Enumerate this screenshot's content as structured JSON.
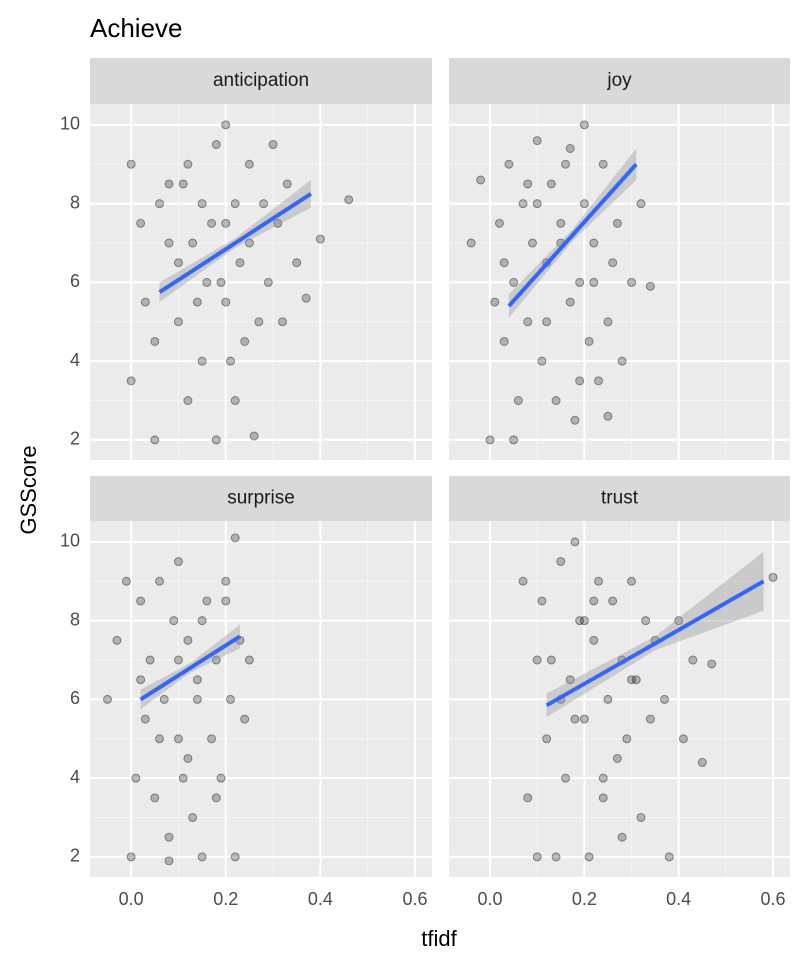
{
  "chart_data": {
    "type": "scatter",
    "title": "Achieve",
    "xlabel": "tfidf",
    "ylabel": "GSScore",
    "xlim": [
      -0.087,
      0.636
    ],
    "ylim": [
      1.49,
      10.53
    ],
    "xticks": [
      {
        "value": 0,
        "label": "0.0"
      },
      0.2,
      0.4,
      0.6
    ],
    "yticks": [
      2,
      4,
      6,
      8,
      10
    ],
    "grid": true,
    "point_color": "#000000",
    "fit_color": "#3366ff",
    "band_color": "#999999",
    "facets": [
      {
        "name": "anticipation",
        "x": [
          0.0,
          0.02,
          0.03,
          0.05,
          0.0,
          0.05,
          0.08,
          0.1,
          0.1,
          0.12,
          0.12,
          0.13,
          0.15,
          0.15,
          0.16,
          0.18,
          0.18,
          0.2,
          0.2,
          0.2,
          0.22,
          0.22,
          0.23,
          0.24,
          0.25,
          0.25,
          0.26,
          0.27,
          0.28,
          0.29,
          0.3,
          0.31,
          0.32,
          0.33,
          0.35,
          0.37,
          0.4,
          0.46,
          0.08,
          0.14,
          0.06,
          0.11,
          0.19,
          0.21,
          0.17
        ],
        "y": [
          9.0,
          7.5,
          5.5,
          4.5,
          3.5,
          2.0,
          8.5,
          6.5,
          5.0,
          3.0,
          9.0,
          7.0,
          8.0,
          4.0,
          6.0,
          9.5,
          2.0,
          7.5,
          5.5,
          10.0,
          8.0,
          3.0,
          6.5,
          4.5,
          9.0,
          7.0,
          2.1,
          5.0,
          8.0,
          6.0,
          9.5,
          7.5,
          5.0,
          8.5,
          6.5,
          5.6,
          7.1,
          8.1,
          7.0,
          5.5,
          8.0,
          8.5,
          6.0,
          4.0,
          7.5
        ],
        "fit": {
          "x": [
            0.06,
            0.22,
            0.38
          ],
          "y": [
            5.75,
            7.0,
            8.25
          ],
          "lower": [
            5.5,
            6.88,
            7.9
          ],
          "upper": [
            6.0,
            7.12,
            8.6
          ]
        }
      },
      {
        "name": "joy",
        "x": [
          -0.04,
          -0.02,
          0.0,
          0.01,
          0.02,
          0.03,
          0.04,
          0.05,
          0.06,
          0.07,
          0.08,
          0.09,
          0.1,
          0.11,
          0.12,
          0.13,
          0.14,
          0.15,
          0.16,
          0.17,
          0.18,
          0.19,
          0.2,
          0.2,
          0.21,
          0.22,
          0.23,
          0.24,
          0.25,
          0.26,
          0.27,
          0.28,
          0.3,
          0.32,
          0.34,
          0.19,
          0.05,
          0.15,
          0.1,
          0.22,
          0.12,
          0.08,
          0.17,
          0.25,
          0.03
        ],
        "y": [
          7.0,
          8.6,
          2.0,
          5.5,
          7.5,
          4.5,
          9.0,
          6.0,
          3.0,
          8.0,
          5.0,
          7.0,
          9.6,
          4.0,
          6.5,
          8.5,
          3.0,
          7.5,
          9.0,
          5.5,
          2.5,
          6.0,
          10.0,
          8.0,
          4.5,
          7.0,
          3.5,
          9.0,
          5.0,
          6.5,
          7.5,
          4.0,
          6.0,
          8.0,
          5.9,
          3.5,
          2.0,
          7.0,
          8.0,
          6.0,
          5.0,
          8.5,
          9.4,
          2.6,
          6.5
        ],
        "fit": {
          "x": [
            0.04,
            0.175,
            0.31
          ],
          "y": [
            5.4,
            7.2,
            9.0
          ],
          "lower": [
            5.1,
            7.05,
            8.6
          ],
          "upper": [
            5.7,
            7.35,
            9.4
          ]
        }
      },
      {
        "name": "surprise",
        "x": [
          -0.05,
          -0.03,
          -0.01,
          0.0,
          0.01,
          0.02,
          0.03,
          0.04,
          0.05,
          0.06,
          0.07,
          0.08,
          0.09,
          0.1,
          0.1,
          0.11,
          0.12,
          0.13,
          0.14,
          0.15,
          0.16,
          0.17,
          0.18,
          0.19,
          0.2,
          0.21,
          0.22,
          0.23,
          0.24,
          0.25,
          0.08,
          0.12,
          0.15,
          0.18,
          0.02,
          0.06,
          0.1,
          0.2,
          0.14,
          0.22
        ],
        "y": [
          6.0,
          7.5,
          9.0,
          2.0,
          4.0,
          8.5,
          5.5,
          7.0,
          3.5,
          9.0,
          6.0,
          2.5,
          8.0,
          5.0,
          9.5,
          4.0,
          7.5,
          3.0,
          6.5,
          2.0,
          8.5,
          5.0,
          7.0,
          4.0,
          9.0,
          6.0,
          10.1,
          7.5,
          5.5,
          7.0,
          1.9,
          4.5,
          8.0,
          3.5,
          6.5,
          5.0,
          7.0,
          8.5,
          6.0,
          2.0
        ],
        "fit": {
          "x": [
            0.02,
            0.125,
            0.23
          ],
          "y": [
            6.0,
            6.8,
            7.6
          ],
          "lower": [
            5.75,
            6.68,
            7.3
          ],
          "upper": [
            6.25,
            6.92,
            7.9
          ]
        }
      },
      {
        "name": "trust",
        "x": [
          0.07,
          0.08,
          0.1,
          0.11,
          0.12,
          0.13,
          0.14,
          0.15,
          0.16,
          0.17,
          0.18,
          0.19,
          0.2,
          0.21,
          0.22,
          0.23,
          0.24,
          0.25,
          0.26,
          0.27,
          0.28,
          0.29,
          0.3,
          0.31,
          0.32,
          0.33,
          0.34,
          0.35,
          0.37,
          0.38,
          0.4,
          0.41,
          0.43,
          0.45,
          0.47,
          0.6,
          0.15,
          0.2,
          0.24,
          0.28,
          0.1,
          0.22,
          0.18,
          0.3
        ],
        "y": [
          9.0,
          3.5,
          2.0,
          8.5,
          5.0,
          7.0,
          2.0,
          9.5,
          4.0,
          6.5,
          10.0,
          8.0,
          5.5,
          2.0,
          7.5,
          9.0,
          3.5,
          6.0,
          8.5,
          4.5,
          7.0,
          5.0,
          9.0,
          6.5,
          3.0,
          8.0,
          5.5,
          7.5,
          6.0,
          2.0,
          8.0,
          5.0,
          7.0,
          4.4,
          6.9,
          9.1,
          6.0,
          8.0,
          4.0,
          2.5,
          7.0,
          8.5,
          5.5,
          6.5
        ],
        "fit": {
          "x": [
            0.12,
            0.35,
            0.58
          ],
          "y": [
            5.85,
            7.42,
            9.0
          ],
          "lower": [
            5.55,
            7.25,
            8.25
          ],
          "upper": [
            6.15,
            7.6,
            9.75
          ]
        }
      }
    ]
  }
}
